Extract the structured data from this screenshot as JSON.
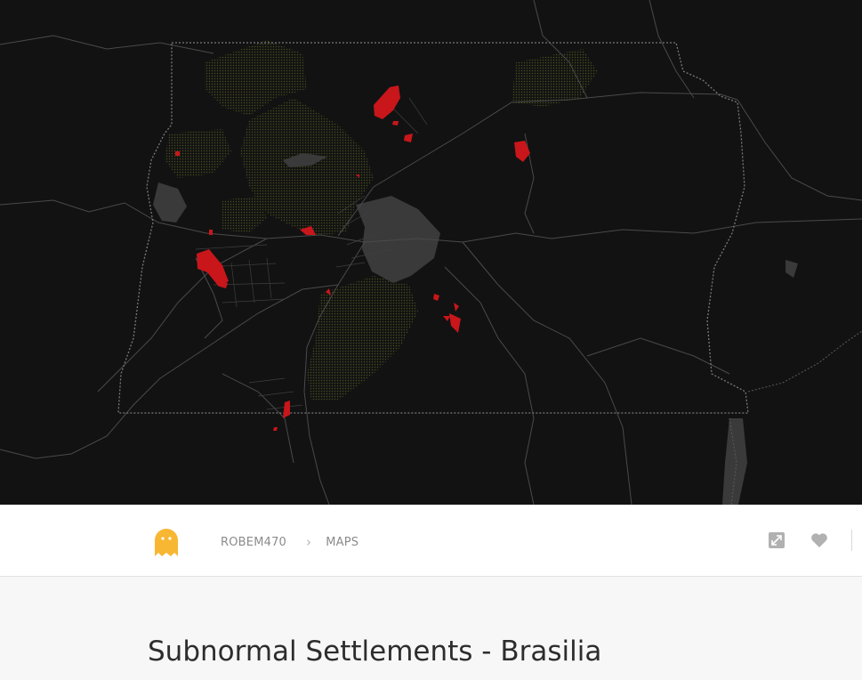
{
  "map": {
    "background": "#121212",
    "boundary_color": "#7a7a7a",
    "road_color": "#4a4a4a",
    "water_color": "#3a3a3a",
    "park_color": "#4d5223",
    "settlement_color": "#c8161b"
  },
  "navbar": {
    "logo_icon": "ghost-icon",
    "logo_color": "#f7b733",
    "breadcrumb": {
      "user": "ROBEM470",
      "separator": "›",
      "section": "MAPS"
    },
    "actions": [
      {
        "name": "expand-button",
        "icon": "expand-icon"
      },
      {
        "name": "like-button",
        "icon": "heart-icon"
      }
    ]
  },
  "page": {
    "title": "Subnormal Settlements - Brasilia"
  }
}
